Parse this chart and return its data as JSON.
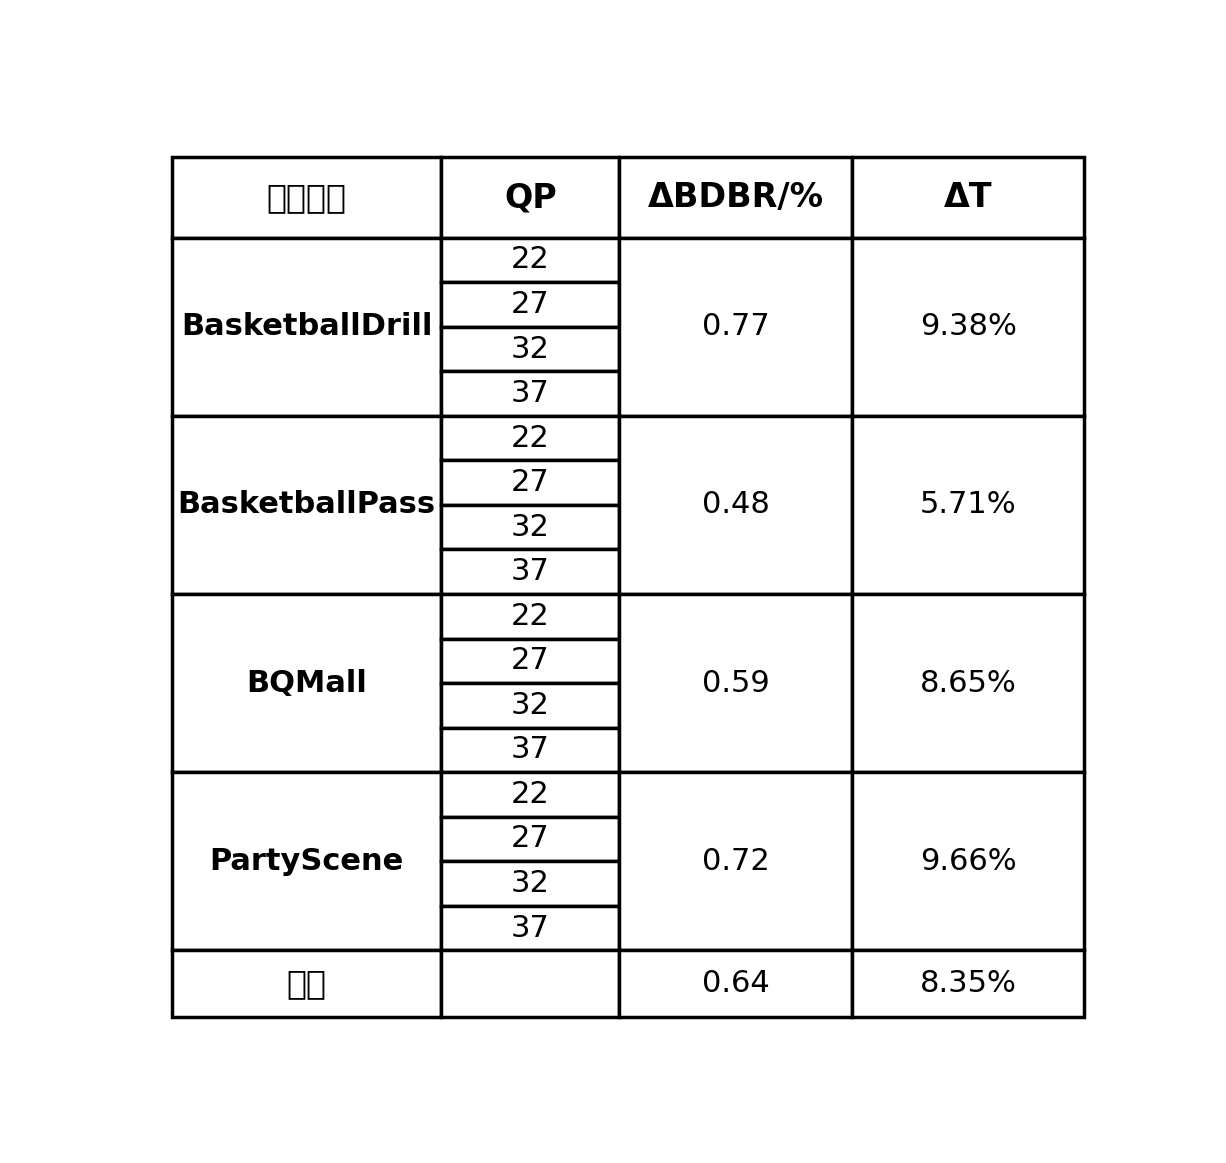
{
  "header": [
    "测试序列",
    "QP",
    "ΔBDBR/%",
    "ΔT"
  ],
  "sequences": [
    {
      "name": "BasketballDrill",
      "qp": [
        22,
        27,
        32,
        37
      ],
      "bdbr": "0.77",
      "dt": "9.38%"
    },
    {
      "name": "BasketballPass",
      "qp": [
        22,
        27,
        32,
        37
      ],
      "bdbr": "0.48",
      "dt": "5.71%"
    },
    {
      "name": "BQMall",
      "qp": [
        22,
        27,
        32,
        37
      ],
      "bdbr": "0.59",
      "dt": "8.65%"
    },
    {
      "name": "PartyScene",
      "qp": [
        22,
        27,
        32,
        37
      ],
      "bdbr": "0.72",
      "dt": "9.66%"
    }
  ],
  "average": {
    "label": "平均",
    "bdbr": "0.64",
    "dt": "8.35%"
  },
  "border_color": "#000000",
  "background_color": "#ffffff",
  "text_color": "#000000",
  "header_fontsize": 24,
  "body_fontsize": 22,
  "name_fontsize": 22
}
